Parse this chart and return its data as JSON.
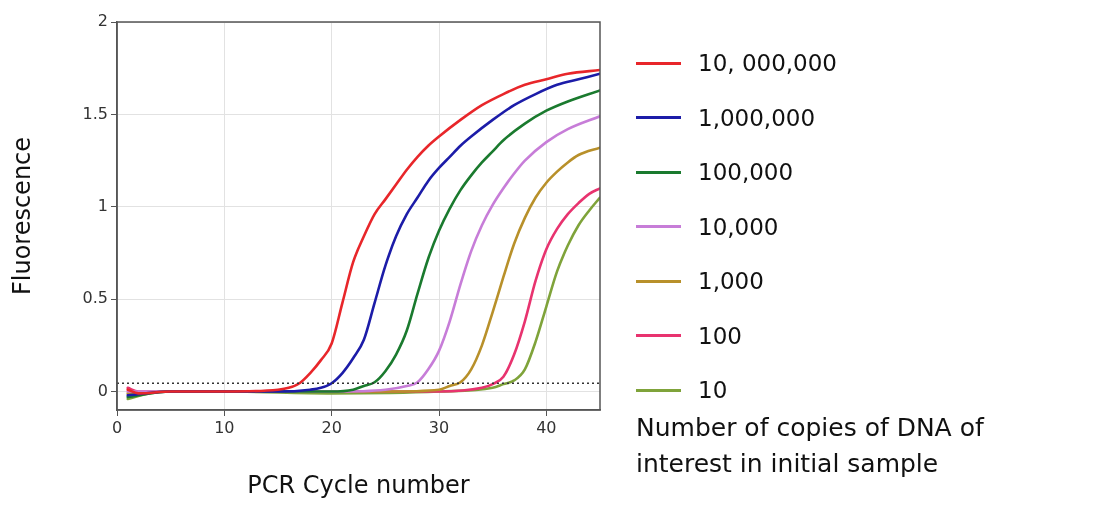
{
  "chart_data": {
    "type": "line",
    "xlabel": "PCR Cycle number",
    "ylabel": "Fluorescence",
    "legend_title": "Number of copies of DNA of interest in initial sample",
    "xlim": [
      0,
      45
    ],
    "xticks": [
      0,
      10,
      20,
      30,
      40
    ],
    "ylim": [
      -0.1,
      2
    ],
    "yticks": [
      0,
      0.5,
      1,
      1.5,
      2
    ],
    "grid": true,
    "legend": "right",
    "marker": "none",
    "line_style": "solid",
    "ref_lines": [
      {
        "axis": "y",
        "value": 0.045,
        "line_style": "dotted",
        "color": "#333333"
      }
    ],
    "series": [
      {
        "name": "10, 000,000",
        "color": "#e8262a",
        "x": [
          1,
          2,
          5,
          10,
          15,
          16,
          17,
          18,
          19,
          20,
          21,
          22,
          23,
          24,
          25,
          26,
          27,
          28,
          29,
          30,
          32,
          34,
          36,
          38,
          40,
          42,
          45
        ],
        "values": [
          0.01,
          -0.01,
          0,
          0,
          0.01,
          0.02,
          0.045,
          0.1,
          0.17,
          0.26,
          0.48,
          0.7,
          0.84,
          0.96,
          1.04,
          1.12,
          1.2,
          1.27,
          1.33,
          1.38,
          1.47,
          1.55,
          1.61,
          1.66,
          1.69,
          1.72,
          1.74
        ]
      },
      {
        "name": "1,000,000",
        "color": "#1c1ca8",
        "x": [
          1,
          5,
          10,
          15,
          18,
          19,
          20,
          21,
          22,
          23,
          24,
          25,
          26,
          27,
          28,
          29,
          30,
          31,
          32,
          33,
          35,
          37,
          39,
          41,
          43,
          45
        ],
        "values": [
          -0.02,
          0,
          0,
          0,
          0.01,
          0.02,
          0.045,
          0.1,
          0.18,
          0.28,
          0.48,
          0.68,
          0.84,
          0.96,
          1.05,
          1.14,
          1.21,
          1.27,
          1.33,
          1.38,
          1.47,
          1.55,
          1.61,
          1.66,
          1.69,
          1.72
        ]
      },
      {
        "name": "100,000",
        "color": "#1a7a2e",
        "x": [
          1,
          5,
          10,
          15,
          20,
          22,
          23,
          24,
          25,
          26,
          27,
          28,
          29,
          30,
          31,
          32,
          33,
          34,
          35,
          36,
          38,
          40,
          42,
          45
        ],
        "values": [
          -0.03,
          0,
          0,
          0,
          0,
          0.01,
          0.03,
          0.05,
          0.11,
          0.2,
          0.33,
          0.53,
          0.72,
          0.87,
          0.99,
          1.09,
          1.17,
          1.24,
          1.3,
          1.36,
          1.45,
          1.52,
          1.57,
          1.63
        ]
      },
      {
        "name": "10,000",
        "color": "#c77dd8",
        "x": [
          1,
          5,
          10,
          15,
          20,
          25,
          27,
          28,
          29,
          30,
          31,
          32,
          33,
          34,
          35,
          36,
          37,
          38,
          40,
          42,
          45
        ],
        "values": [
          0,
          0,
          0,
          0,
          0,
          0.01,
          0.03,
          0.05,
          0.12,
          0.22,
          0.38,
          0.58,
          0.76,
          0.9,
          1.01,
          1.1,
          1.18,
          1.25,
          1.35,
          1.42,
          1.49
        ]
      },
      {
        "name": "1,000",
        "color": "#b8902a",
        "x": [
          1,
          5,
          10,
          20,
          25,
          30,
          31,
          32,
          33,
          34,
          35,
          36,
          37,
          38,
          39,
          40,
          41,
          42,
          43,
          45
        ],
        "values": [
          -0.01,
          0,
          0,
          0,
          0,
          0.01,
          0.03,
          0.05,
          0.12,
          0.25,
          0.43,
          0.62,
          0.8,
          0.94,
          1.05,
          1.13,
          1.19,
          1.24,
          1.28,
          1.32
        ]
      },
      {
        "name": "100",
        "color": "#e8336f",
        "x": [
          1,
          2,
          5,
          10,
          20,
          30,
          34,
          35,
          36,
          37,
          38,
          39,
          40,
          41,
          42,
          43,
          44,
          45
        ],
        "values": [
          0.02,
          0,
          0,
          0,
          0,
          0,
          0.02,
          0.04,
          0.08,
          0.2,
          0.38,
          0.6,
          0.77,
          0.88,
          0.96,
          1.02,
          1.07,
          1.1
        ]
      },
      {
        "name": "10",
        "color": "#7fa33a",
        "x": [
          1,
          3,
          5,
          10,
          20,
          30,
          35,
          36,
          37,
          38,
          39,
          40,
          41,
          42,
          43,
          44,
          45
        ],
        "values": [
          -0.04,
          -0.01,
          0,
          0,
          -0.01,
          0,
          0.02,
          0.04,
          0.06,
          0.12,
          0.27,
          0.46,
          0.65,
          0.79,
          0.9,
          0.98,
          1.05
        ]
      }
    ]
  }
}
